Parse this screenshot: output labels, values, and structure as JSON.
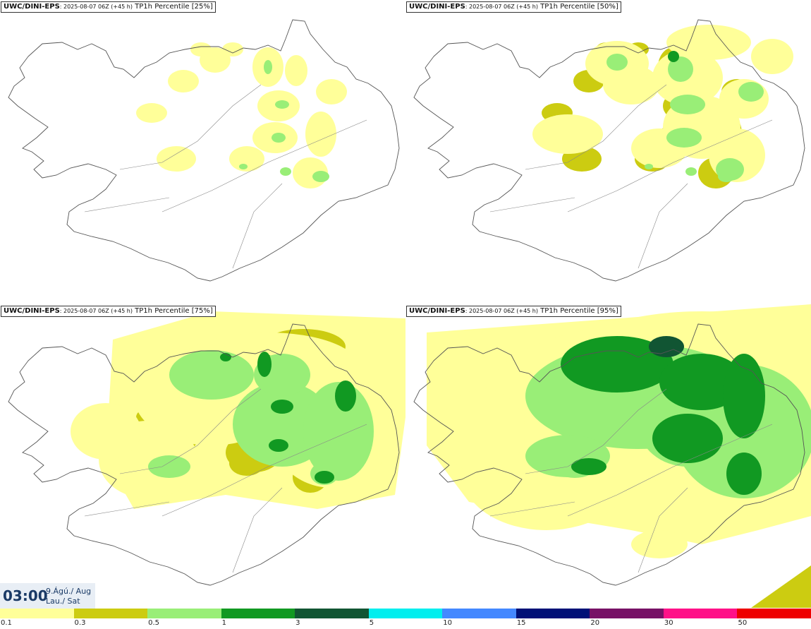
{
  "panels": [
    {
      "source": "UWC/DINI-EPS",
      "meta": ": 2025-08-07 06Z (+45 h)",
      "label": "TP1h Percentile [25%]",
      "level": 0
    },
    {
      "source": "UWC/DINI-EPS",
      "meta": ": 2025-08-07 06Z (+45 h)",
      "label": "TP1h Percentile [50%]",
      "level": 1
    },
    {
      "source": "UWC/DINI-EPS",
      "meta": ": 2025-08-07 06Z (+45 h)",
      "label": "TP1h Percentile [75%]",
      "level": 2
    },
    {
      "source": "UWC/DINI-EPS",
      "meta": ": 2025-08-07 06Z (+45 h)",
      "label": "TP1h Percentile [95%]",
      "level": 3
    }
  ],
  "time": {
    "clock": "03:00",
    "date_line1": "9.Ágú./ Aug",
    "date_line2": "Lau./ Sat"
  },
  "legend": {
    "ticks": [
      "0.1",
      "0.3",
      "0.5",
      "1",
      "3",
      "5",
      "10",
      "15",
      "20",
      "30",
      "50"
    ],
    "colors": [
      "#ffff99",
      "#cccc11",
      "#99ee77",
      "#119922",
      "#115533",
      "#00eeee",
      "#4488ff",
      "#001177",
      "#771166",
      "#ff1188",
      "#ee0000"
    ]
  }
}
